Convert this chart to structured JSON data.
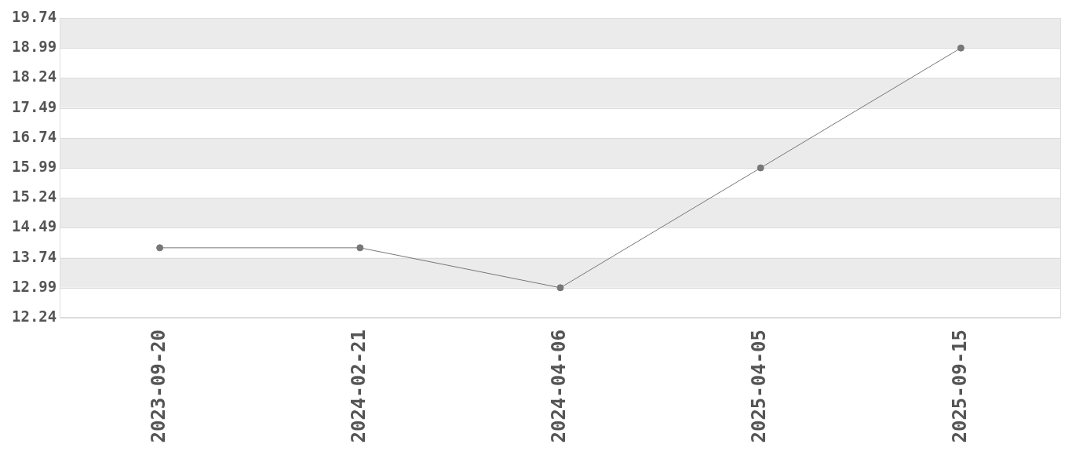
{
  "chart_data": {
    "type": "line",
    "categories": [
      "2023-09-20",
      "2024-02-21",
      "2024-04-06",
      "2025-04-05",
      "2025-09-15"
    ],
    "values": [
      13.99,
      13.99,
      12.99,
      15.99,
      18.99
    ],
    "color": "#777777",
    "ylim": [
      12.24,
      19.74
    ],
    "yticks": [
      12.24,
      12.99,
      13.74,
      14.49,
      15.24,
      15.99,
      16.74,
      17.49,
      18.24,
      18.99,
      19.74
    ],
    "grid": "y",
    "marker": "circle",
    "line_style": "solid"
  }
}
